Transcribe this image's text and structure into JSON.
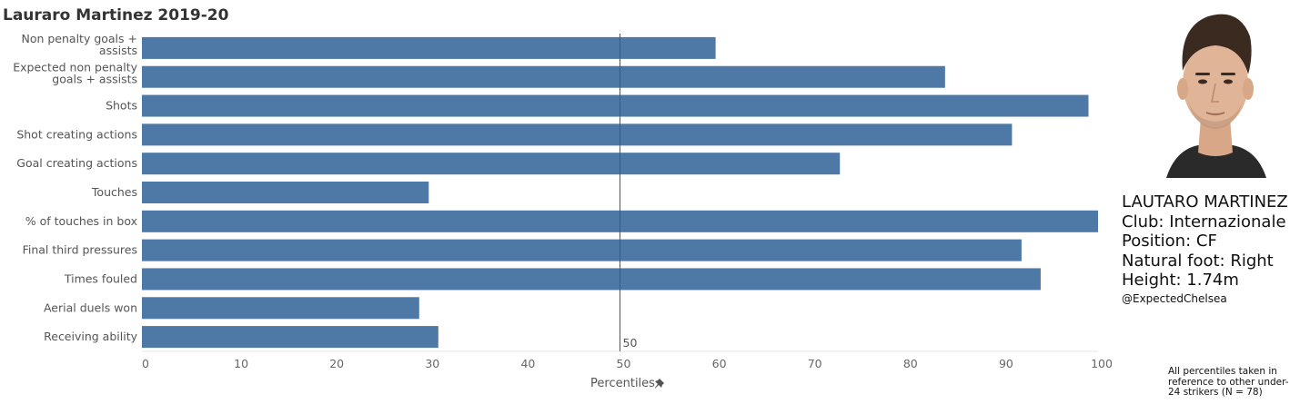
{
  "title": "Lauraro Martinez 2019-20",
  "player": {
    "name": "LAUTARO MARTINEZ",
    "club": "Club: Internazionale",
    "position": "Position: CF",
    "foot": "Natural foot: Right",
    "height": "Height: 1.74m",
    "credit": "@ExpectedChelsea",
    "note": "All percentiles taken in reference to other under-24 strikers (N = 78)"
  },
  "colors": {
    "bar": "#4e79a7",
    "refline": "#555555"
  },
  "chart_data": {
    "type": "bar",
    "orientation": "horizontal",
    "categories": [
      [
        "Non penalty goals +",
        "assists"
      ],
      [
        "Expected non penalty",
        "goals + assists"
      ],
      [
        "Shots"
      ],
      [
        "Shot creating actions"
      ],
      [
        "Goal creating actions"
      ],
      [
        "Touches"
      ],
      [
        "% of touches in box"
      ],
      [
        "Final third pressures"
      ],
      [
        "Times fouled"
      ],
      [
        "Aerial duels won"
      ],
      [
        "Receiving ability"
      ]
    ],
    "values": [
      60,
      84,
      99,
      91,
      73,
      30,
      100,
      92,
      94,
      29,
      31
    ],
    "xlim": [
      0,
      100
    ],
    "xticks": [
      0,
      10,
      20,
      30,
      40,
      50,
      60,
      70,
      80,
      90,
      100
    ],
    "xlabel": "Percentiles",
    "reference_line": {
      "x": 50,
      "label": "50"
    },
    "grid": false
  }
}
